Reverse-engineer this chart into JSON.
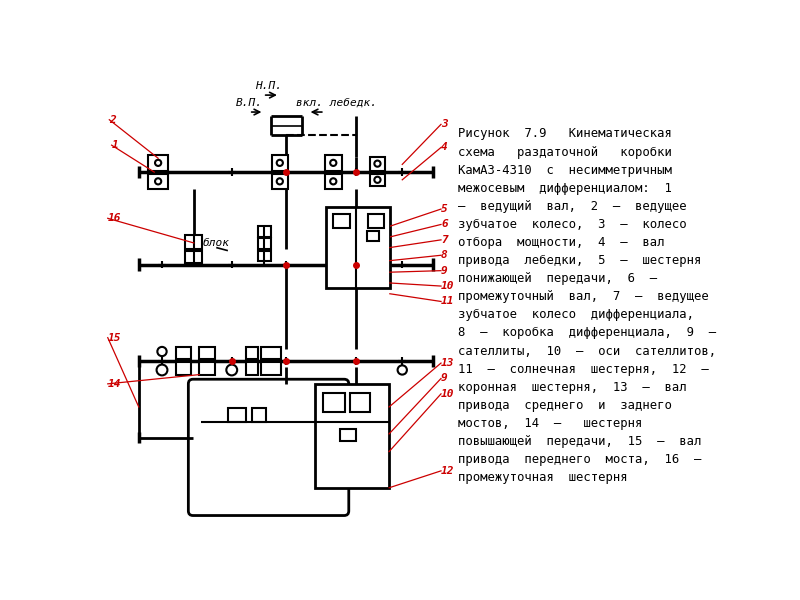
{
  "bg_color": "#ffffff",
  "line_color": "#000000",
  "label_color": "#cc0000",
  "text_color": "#000000",
  "fig_width": 8.0,
  "fig_height": 6.0,
  "lines_text": [
    "Рисунок  7.9   Кинематическая",
    "схема   раздаточной   коробки",
    "КамАЗ-4310  с  несимметричным",
    "межосевым  дифференциалом:  1",
    "–  ведущий  вал,  2  –  ведущее",
    "зубчатое  колесо,  3  –  колесо",
    "отбора  мощности,  4  –  вал",
    "привода  лебедки,  5  –  шестерня",
    "понижающей  передачи,  6  –",
    "промежуточный  вал,  7  –  ведущее",
    "зубчатое  колесо  дифференциала,",
    "8  –  коробка  дифференциала,  9  –",
    "сателлиты,  10  –  оси  сателлитов,",
    "11  –  солнечная  шестерня,  12  –",
    "коронная  шестерня,  13  –  вал",
    "привода  среднего  и  заднего",
    "мостов,  14  –   шестерня",
    "повышающей  передачи,  15  –  вал",
    "привода  переднего  моста,  16  –",
    "промежуточная  шестерня"
  ]
}
